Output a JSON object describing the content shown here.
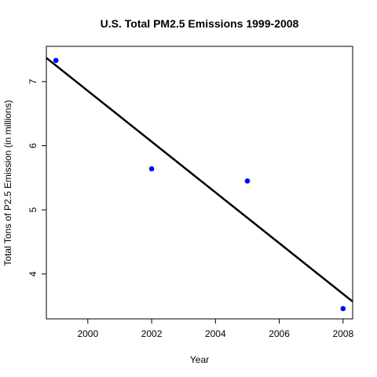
{
  "chart_data": {
    "type": "scatter",
    "title": "U.S. Total PM2.5 Emissions 1999-2008",
    "xlabel": "Year",
    "ylabel": "Total Tons of P2.5 Emission (in millions)",
    "xlim": [
      1998.7,
      2008.3
    ],
    "ylim": [
      3.3,
      7.55
    ],
    "xticks": [
      2000,
      2002,
      2004,
      2006,
      2008
    ],
    "yticks": [
      4,
      5,
      6,
      7
    ],
    "series": [
      {
        "x": [
          1999,
          2002,
          2005,
          2008
        ],
        "y": [
          7.33,
          5.64,
          5.45,
          3.46
        ],
        "color": "#0000ff",
        "marker": "filled-circle"
      }
    ],
    "regression_line": {
      "x": [
        1998.7,
        2008.3
      ],
      "y": [
        7.37,
        3.57
      ],
      "color": "#000000"
    },
    "grid": false,
    "legend": "none"
  }
}
